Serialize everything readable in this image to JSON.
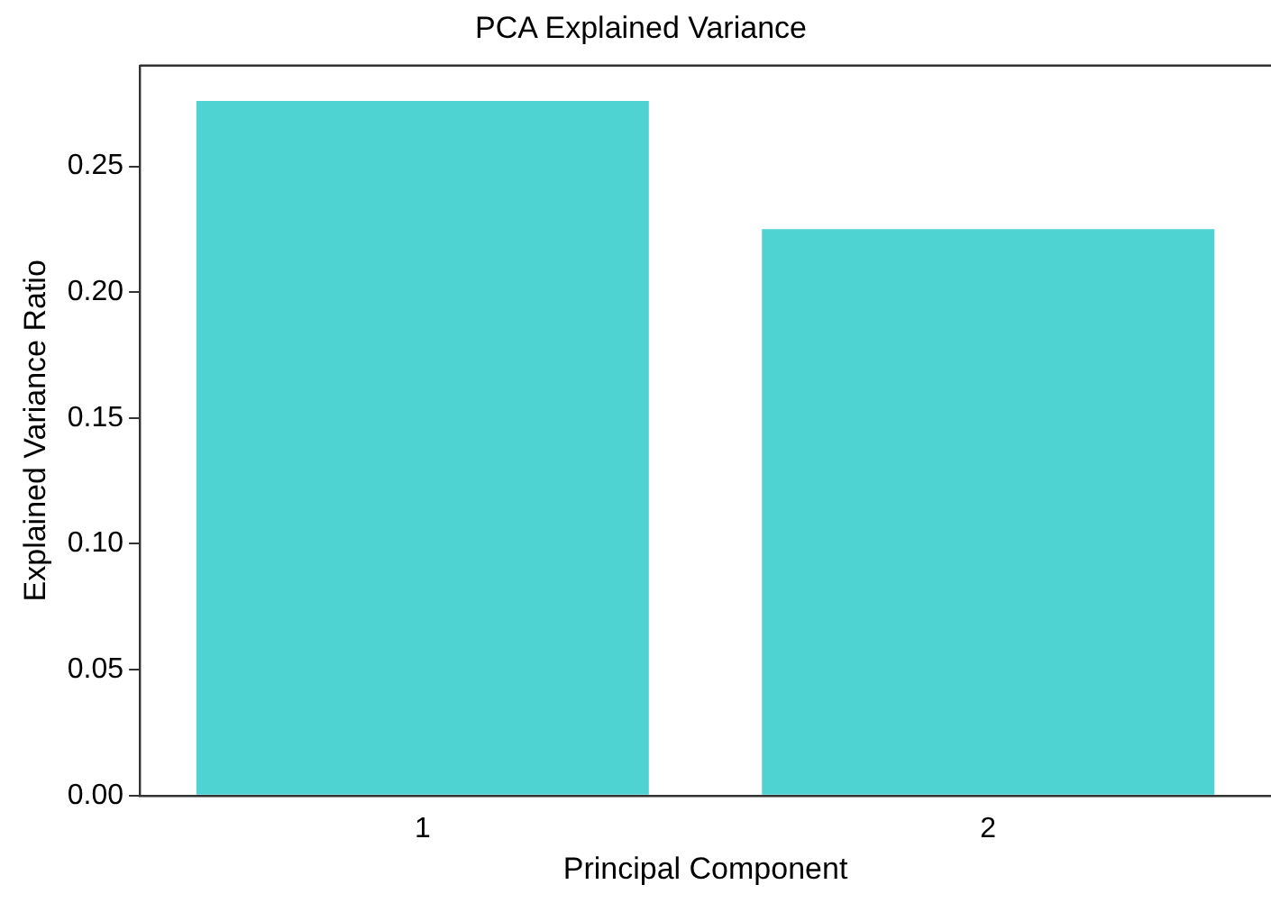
{
  "chart_data": {
    "type": "bar",
    "title": "PCA Explained Variance",
    "xlabel": "Principal Component",
    "ylabel": "Explained Variance Ratio",
    "categories": [
      "1",
      "2"
    ],
    "values": [
      0.276,
      0.225
    ],
    "color": "#4ed2d2",
    "ylim": [
      0,
      0.29
    ],
    "yticks": [
      {
        "value": 0,
        "label": "0.00"
      },
      0.05,
      {
        "value": 0.1,
        "label": "0.10"
      },
      0.15,
      {
        "value": 0.2,
        "label": "0.20"
      },
      0.25
    ],
    "grid": false,
    "legend": false
  }
}
